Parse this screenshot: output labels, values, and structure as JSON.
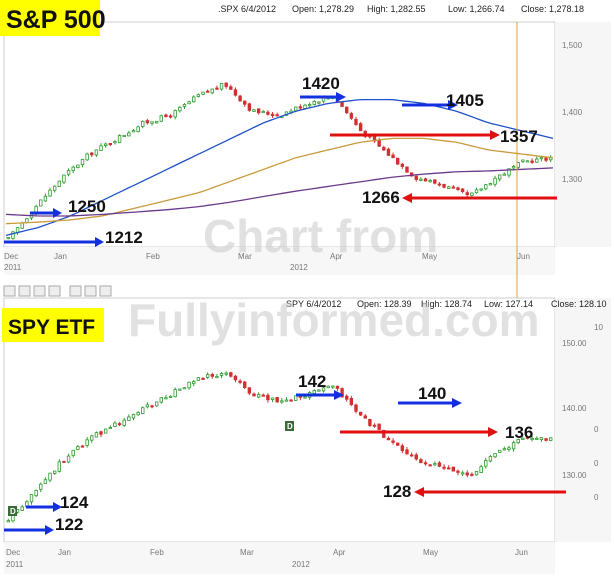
{
  "colors": {
    "up": "#2e9d2e",
    "down": "#d23030",
    "ma_blue": "#1e50c8",
    "ma_orange": "#c99a3a",
    "ma_purple": "#6a3a8a",
    "blue_arrow": "#1230e0",
    "red_arrow": "#e01010",
    "title_bg": "#ffff00",
    "today_line": "#d9a030"
  },
  "chart_data": [
    {
      "type": "candlestick",
      "title": "S&P 500",
      "header": {
        "symbol": ".SPX 6/4/2012",
        "open": "Open: 1,278.29",
        "high": "High: 1,282.55",
        "low": "Low: 1,266.74",
        "close": "Close: 1,278.18"
      },
      "watermark": "Chart from",
      "xlabels": [
        "Dec",
        "Jan",
        "Feb",
        "Mar",
        "Apr",
        "May",
        "Jun"
      ],
      "year_labels": [
        "2011",
        "2012"
      ],
      "yticks": [
        "1,500",
        "1,400",
        "1,300"
      ],
      "ylim": [
        1210,
        1500
      ],
      "annotations": [
        "1420",
        "1405",
        "1357",
        "1250",
        "1266",
        "1212"
      ],
      "series": [
        {
          "kind": "ohlc",
          "y": [
            1220,
            1262,
            1300,
            1330,
            1350,
            1370,
            1380,
            1405,
            1420,
            1385,
            1380,
            1395,
            1405,
            1360,
            1330,
            1300,
            1290,
            1275,
            1300,
            1320,
            1325
          ]
        },
        {
          "kind": "moving-average-50",
          "y": [
            1225,
            1235,
            1250,
            1270,
            1290,
            1310,
            1330,
            1350,
            1370,
            1385,
            1395,
            1400,
            1400,
            1395,
            1385,
            1370,
            1360,
            1350
          ]
        },
        {
          "kind": "moving-average-100",
          "y": [
            1240,
            1242,
            1245,
            1250,
            1260,
            1270,
            1280,
            1295,
            1310,
            1325,
            1335,
            1345,
            1350,
            1350,
            1345,
            1335,
            1330,
            1325
          ]
        },
        {
          "kind": "moving-average-200",
          "y": [
            1252,
            1250,
            1250,
            1252,
            1255,
            1258,
            1262,
            1268,
            1275,
            1282,
            1288,
            1294,
            1300,
            1304,
            1307,
            1308,
            1310,
            1312
          ]
        }
      ]
    },
    {
      "type": "candlestick",
      "title": "SPY ETF",
      "header": {
        "symbol": "SPY 6/4/2012",
        "open": "Open: 128.39",
        "high": "High: 128.74",
        "low": "Low: 127.14",
        "close": "Close: 128.10"
      },
      "watermark": "Fullyinformed.com",
      "xlabels": [
        "Dec",
        "Jan",
        "Feb",
        "Mar",
        "Apr",
        "May",
        "Jun"
      ],
      "year_labels": [
        "2011",
        "2012"
      ],
      "yticks": [
        "150.00",
        "140.00",
        "130.00"
      ],
      "right_cut_labels": [
        "10",
        "0",
        "0",
        "0"
      ],
      "ylim": [
        119,
        152
      ],
      "annotations": [
        "142",
        "140",
        "136",
        "124",
        "122",
        "128"
      ],
      "series": [
        {
          "kind": "ohlc",
          "y": [
            122,
            126,
            130,
            133,
            135,
            137,
            139,
            141,
            142,
            139,
            138,
            139,
            140,
            136,
            133,
            130,
            129,
            128,
            131,
            133,
            133
          ]
        }
      ]
    }
  ]
}
